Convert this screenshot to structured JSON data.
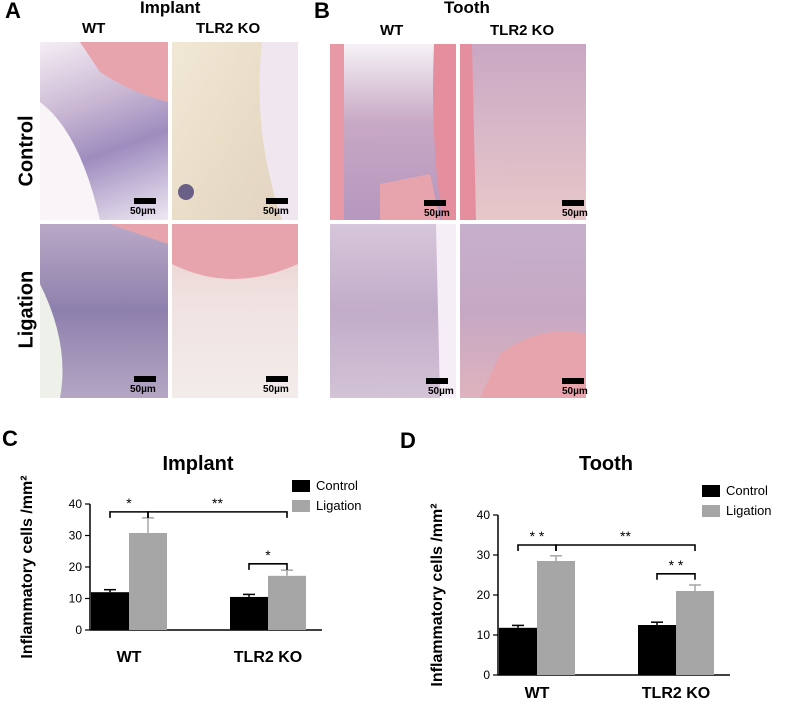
{
  "panels": {
    "A": {
      "letter": "A",
      "title": "Implant",
      "col1": "WT",
      "col2": "TLR2 KO",
      "row1": "Control",
      "row2": "Ligation",
      "scale": "50µm"
    },
    "B": {
      "letter": "B",
      "title": "Tooth",
      "col1": "WT",
      "col2": "TLR2 KO",
      "scale": "50µm"
    },
    "C": {
      "letter": "C"
    },
    "D": {
      "letter": "D"
    }
  },
  "colors": {
    "control": "#000000",
    "ligation": "#a6a6a6",
    "tissue_pink": "#e8a4ad",
    "tissue_bg": "#e9dfe6",
    "nuclei": "#5a4f8a"
  },
  "chart_data": [
    {
      "type": "bar",
      "title": "Implant",
      "ylabel": "Inflammatory cells /mm²",
      "categories": [
        "WT",
        "TLR2 KO"
      ],
      "ylim": [
        0,
        40
      ],
      "yticks": [
        0,
        10,
        20,
        30,
        40
      ],
      "series": [
        {
          "name": "Control",
          "color": "#000000",
          "values": [
            12,
            10.5
          ],
          "errors": [
            0.8,
            0.8
          ]
        },
        {
          "name": "Ligation",
          "color": "#a6a6a6",
          "values": [
            30.8,
            17.2
          ],
          "errors": [
            4.8,
            1.8
          ]
        }
      ],
      "significance": [
        {
          "label": "*",
          "from": [
            0,
            0
          ],
          "to": [
            0,
            1
          ],
          "level": 37.5
        },
        {
          "label": "**",
          "from": [
            0,
            1
          ],
          "to": [
            1,
            1
          ],
          "level": 37.5
        },
        {
          "label": "*",
          "from": [
            1,
            0
          ],
          "to": [
            1,
            1
          ],
          "level": 21
        }
      ],
      "legend": "top-right"
    },
    {
      "type": "bar",
      "title": "Tooth",
      "ylabel": "Inflammatory cells /mm²",
      "categories": [
        "WT",
        "TLR2 KO"
      ],
      "ylim": [
        0,
        40
      ],
      "yticks": [
        0,
        10,
        20,
        30,
        40
      ],
      "series": [
        {
          "name": "Control",
          "color": "#000000",
          "values": [
            11.8,
            12.5
          ],
          "errors": [
            0.6,
            0.7
          ]
        },
        {
          "name": "Ligation",
          "color": "#a6a6a6",
          "values": [
            28.5,
            21
          ],
          "errors": [
            1.3,
            1.5
          ]
        }
      ],
      "significance": [
        {
          "label": "* *",
          "from": [
            0,
            0
          ],
          "to": [
            0,
            1
          ],
          "level": 32.5
        },
        {
          "label": "**",
          "from": [
            0,
            1
          ],
          "to": [
            1,
            1
          ],
          "level": 32.5
        },
        {
          "label": "* *",
          "from": [
            1,
            0
          ],
          "to": [
            1,
            1
          ],
          "level": 25.3
        }
      ],
      "legend": "top-right"
    }
  ]
}
